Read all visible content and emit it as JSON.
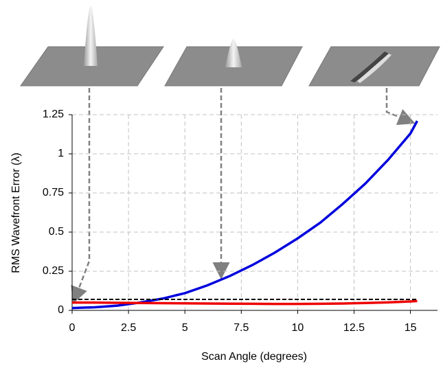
{
  "chart_data": {
    "type": "line",
    "x_label": "Scan Angle (degrees)",
    "y_label": "RMS Wavefront Error (λ)",
    "x": [
      0,
      1,
      2,
      3,
      4,
      5,
      6,
      7,
      8,
      9,
      10,
      11,
      12,
      13,
      14,
      15,
      15.3
    ],
    "series": [
      {
        "color": "#0000dd",
        "values": [
          0.015,
          0.02,
          0.03,
          0.05,
          0.075,
          0.11,
          0.16,
          0.22,
          0.29,
          0.37,
          0.46,
          0.56,
          0.68,
          0.81,
          0.96,
          1.13,
          1.21
        ]
      },
      {
        "color": "#ee0000",
        "values": [
          0.05,
          0.05,
          0.048,
          0.047,
          0.046,
          0.045,
          0.044,
          0.043,
          0.042,
          0.041,
          0.041,
          0.042,
          0.044,
          0.047,
          0.051,
          0.057,
          0.06
        ]
      },
      {
        "color": "#000000",
        "dashed": true,
        "values": [
          0.07,
          0.07,
          0.07,
          0.07,
          0.07,
          0.07,
          0.07,
          0.07,
          0.07,
          0.07,
          0.07,
          0.07,
          0.07,
          0.07,
          0.07,
          0.07,
          0.07
        ]
      }
    ],
    "xlim": [
      0,
      16.2
    ],
    "xticks": [
      0,
      2.5,
      5,
      7.5,
      10,
      12.5,
      15
    ],
    "ylim": [
      0,
      1.25
    ],
    "yticks": [
      0,
      0.25,
      0.5,
      0.75,
      1,
      1.25
    ],
    "grid": true
  }
}
